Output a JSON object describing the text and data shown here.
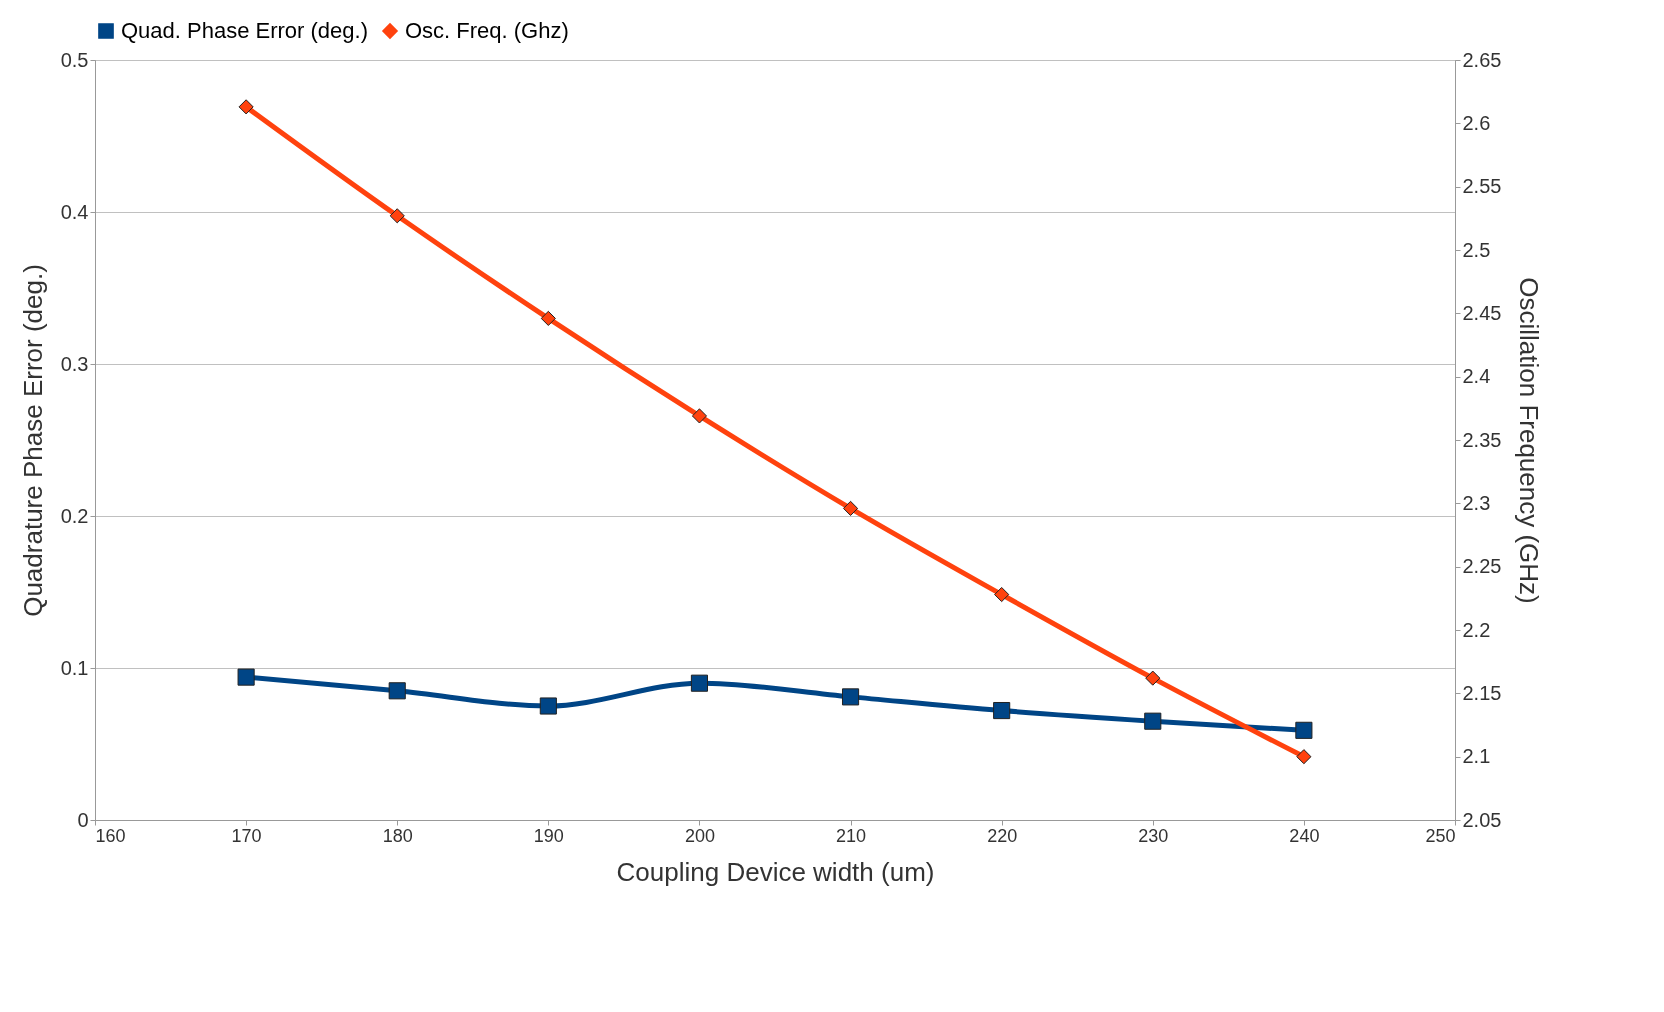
{
  "chart_data": {
    "type": "line",
    "xlabel": "Coupling Device width (um)",
    "ylabel": "Quadrature Phase Error (deg.)",
    "y2label": "Oscillation Frequency (GHz)",
    "x": [
      170,
      180,
      190,
      200,
      210,
      220,
      230,
      240
    ],
    "series": [
      {
        "name": "Quad. Phase Error (deg.)",
        "color": "#004586",
        "marker": "square",
        "values": [
          0.094,
          0.085,
          0.075,
          0.09,
          0.081,
          0.072,
          0.065,
          0.059
        ]
      },
      {
        "name": "Osc. Freq. (Ghz)",
        "color": "#ff420e",
        "marker": "diamond",
        "axis": "y2",
        "values": [
          2.613,
          2.527,
          2.446,
          2.369,
          2.296,
          2.228,
          2.162,
          2.1
        ]
      }
    ],
    "xlim": [
      160,
      250
    ],
    "xticks": [
      160,
      170,
      180,
      190,
      200,
      210,
      220,
      230,
      240,
      250
    ],
    "ylim": [
      0,
      0.5
    ],
    "yticks": [
      0,
      0.1,
      0.2,
      0.3,
      0.4,
      0.5
    ],
    "y2lim": [
      2.05,
      2.65
    ],
    "y2ticks": [
      2.05,
      2.1,
      2.15,
      2.2,
      2.25,
      2.3,
      2.35,
      2.4,
      2.45,
      2.5,
      2.55,
      2.6,
      2.65
    ],
    "grid": "y",
    "legend": "top",
    "line_style": "solid"
  }
}
